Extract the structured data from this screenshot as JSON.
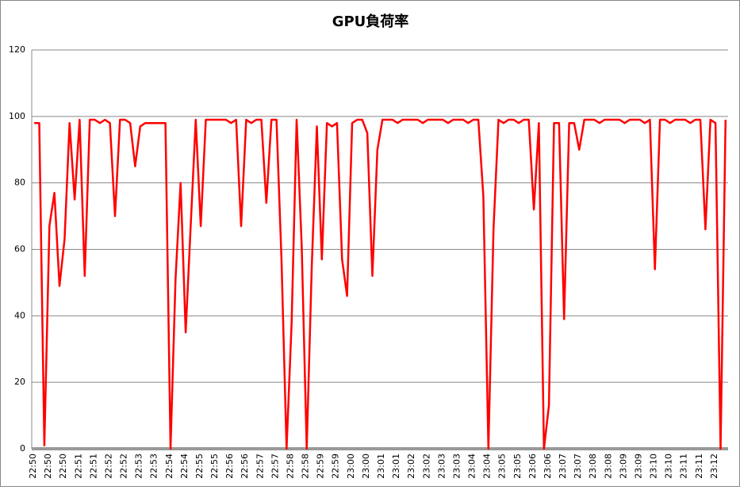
{
  "chart_data": {
    "type": "line",
    "title": "GPU負荷率",
    "categories": [
      "22:50",
      null,
      null,
      "22:50",
      null,
      null,
      "22:50",
      null,
      null,
      "22:51",
      null,
      null,
      "22:51",
      null,
      null,
      "22:52",
      null,
      null,
      "22:52",
      null,
      null,
      "22:53",
      null,
      null,
      "22:53",
      null,
      null,
      "22:54",
      null,
      null,
      "22:54",
      null,
      null,
      "22:55",
      null,
      null,
      "22:55",
      null,
      null,
      "22:56",
      null,
      null,
      "22:56",
      null,
      null,
      "22:57",
      null,
      null,
      "22:57",
      null,
      null,
      "22:58",
      null,
      null,
      "22:58",
      null,
      null,
      "22:59",
      null,
      null,
      "22:59",
      null,
      null,
      "23:00",
      null,
      null,
      "23:00",
      null,
      null,
      "23:01",
      null,
      null,
      "23:01",
      null,
      null,
      "23:02",
      null,
      null,
      "23:02",
      null,
      null,
      "23:03",
      null,
      null,
      "23:03",
      null,
      null,
      "23:04",
      null,
      null,
      "23:04",
      null,
      null,
      "23:05",
      null,
      null,
      "23:05",
      null,
      null,
      "23:06",
      null,
      null,
      "23:06",
      null,
      null,
      "23:07",
      null,
      null,
      "23:07",
      null,
      null,
      "23:08",
      null,
      null,
      "23:08",
      null,
      null,
      "23:09",
      null,
      null,
      "23:09",
      null,
      null,
      "23:10",
      null,
      null,
      "23:10",
      null,
      null,
      "23:11",
      null,
      null,
      "23:11",
      null,
      null,
      "23:12",
      null,
      null
    ],
    "series": [
      {
        "name": "GPU負荷率",
        "color": "#ff0000",
        "values": [
          98,
          98,
          1,
          67,
          77,
          49,
          63,
          98,
          75,
          99,
          52,
          99,
          99,
          98,
          99,
          98,
          70,
          99,
          99,
          98,
          85,
          97,
          98,
          98,
          98,
          98,
          98,
          0,
          51,
          80,
          35,
          67,
          99,
          67,
          99,
          99,
          99,
          99,
          99,
          98,
          99,
          67,
          99,
          98,
          99,
          99,
          74,
          99,
          99,
          57,
          0,
          38,
          99,
          61,
          0,
          55,
          97,
          57,
          98,
          97,
          98,
          57,
          46,
          98,
          99,
          99,
          95,
          52,
          90,
          99,
          99,
          99,
          98,
          99,
          99,
          99,
          99,
          98,
          99,
          99,
          99,
          99,
          98,
          99,
          99,
          99,
          98,
          99,
          99,
          76,
          0,
          66,
          99,
          98,
          99,
          99,
          98,
          99,
          99,
          72,
          98,
          0,
          13,
          98,
          98,
          39,
          98,
          98,
          90,
          99,
          99,
          99,
          98,
          99,
          99,
          99,
          99,
          98,
          99,
          99,
          99,
          98,
          99,
          54,
          99,
          99,
          98,
          99,
          99,
          99,
          98,
          99,
          99,
          66,
          99,
          98,
          0,
          99
        ]
      }
    ],
    "ylim": [
      0,
      120
    ],
    "yticks": [
      0,
      20,
      40,
      60,
      80,
      100,
      120
    ],
    "grid": true
  }
}
